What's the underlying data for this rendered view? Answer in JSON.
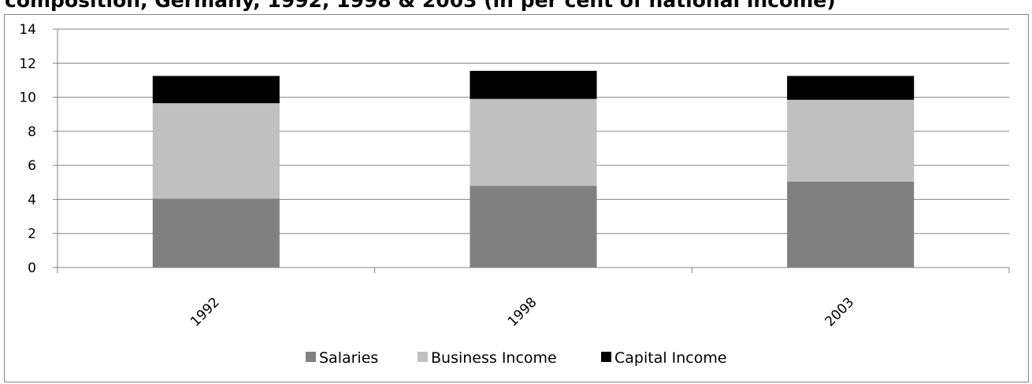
{
  "chart_data": {
    "type": "bar",
    "stacked": true,
    "title": "composition, Germany, 1992, 1998 & 2003 (in per cent of national income)",
    "categories": [
      "1992",
      "1998",
      "2003"
    ],
    "series": [
      {
        "name": "Salaries",
        "values": [
          4.05,
          4.8,
          5.05
        ],
        "color": "#808080"
      },
      {
        "name": "Business Income",
        "values": [
          5.6,
          5.1,
          4.8
        ],
        "color": "#c0c0c0"
      },
      {
        "name": "Capital Income",
        "values": [
          1.6,
          1.65,
          1.4
        ],
        "color": "#000000"
      }
    ],
    "ylim": [
      0,
      14
    ],
    "yticks": [
      "0",
      "2",
      "4",
      "6",
      "8",
      "10",
      "12",
      "14"
    ],
    "grid": true,
    "legend_position": "bottom"
  }
}
